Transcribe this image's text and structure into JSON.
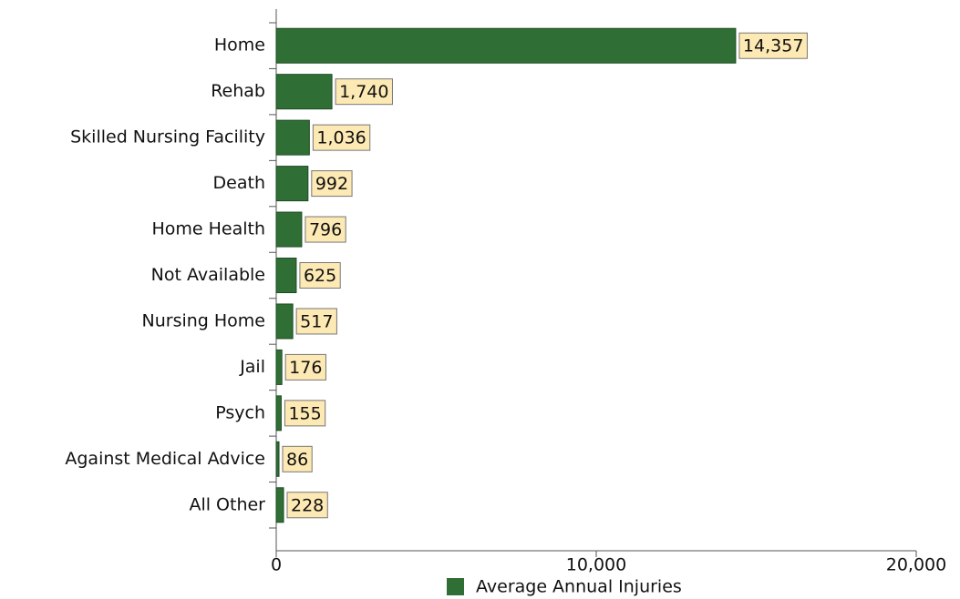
{
  "chart_data": {
    "type": "bar",
    "orientation": "horizontal",
    "categories": [
      "Home",
      "Rehab",
      "Skilled Nursing Facility",
      "Death",
      "Home Health",
      "Not Available",
      "Nursing Home",
      "Jail",
      "Psych",
      "Against Medical Advice",
      "All Other"
    ],
    "series": [
      {
        "name": "Average Annual Injuries",
        "color": "#2f6f35",
        "values": [
          14357,
          1740,
          1036,
          992,
          796,
          625,
          517,
          176,
          155,
          86,
          228
        ],
        "value_labels": [
          "14,357",
          "1,740",
          "1,036",
          "992",
          "796",
          "625",
          "517",
          "176",
          "155",
          "86",
          "228"
        ]
      }
    ],
    "xlim": [
      0,
      20000
    ],
    "xticks": [
      0,
      {
        "value": 10000,
        "label": "10,000"
      },
      {
        "value": 20000,
        "label": "20,000"
      }
    ],
    "legend": "bottom"
  }
}
